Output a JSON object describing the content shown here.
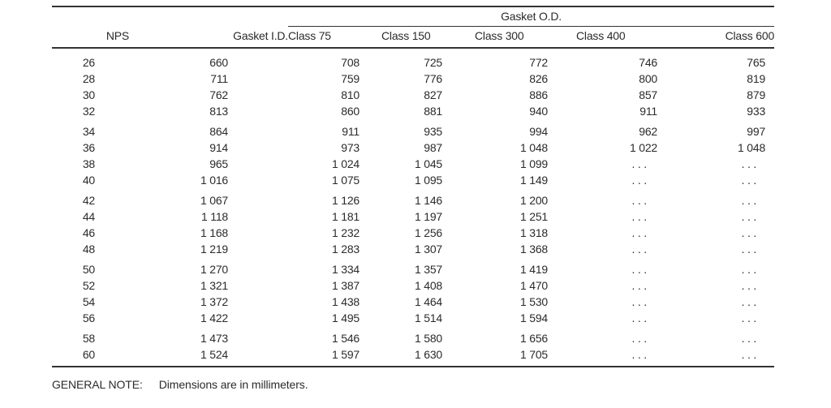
{
  "page": {
    "background": "#ffffff",
    "text_color": "#2b2b2b",
    "rule_color": "#333333"
  },
  "table": {
    "spanner_label": "Gasket O.D.",
    "columns": [
      "NPS",
      "Gasket I.D.",
      "Class 75",
      "Class 150",
      "Class 300",
      "Class 400",
      "Class 600"
    ],
    "ellipsis": ". . .",
    "groups": [
      [
        [
          "26",
          "660",
          "708",
          "725",
          "772",
          "746",
          "765"
        ],
        [
          "28",
          "711",
          "759",
          "776",
          "826",
          "800",
          "819"
        ],
        [
          "30",
          "762",
          "810",
          "827",
          "886",
          "857",
          "879"
        ],
        [
          "32",
          "813",
          "860",
          "881",
          "940",
          "911",
          "933"
        ]
      ],
      [
        [
          "34",
          "864",
          "911",
          "935",
          "994",
          "962",
          "997"
        ],
        [
          "36",
          "914",
          "973",
          "987",
          "1 048",
          "1 022",
          "1 048"
        ],
        [
          "38",
          "965",
          "1 024",
          "1 045",
          "1 099",
          ". . .",
          ". . ."
        ],
        [
          "40",
          "1 016",
          "1 075",
          "1 095",
          "1 149",
          ". . .",
          ". . ."
        ]
      ],
      [
        [
          "42",
          "1 067",
          "1 126",
          "1 146",
          "1 200",
          ". . .",
          ". . ."
        ],
        [
          "44",
          "1 118",
          "1 181",
          "1 197",
          "1 251",
          ". . .",
          ". . ."
        ],
        [
          "46",
          "1 168",
          "1 232",
          "1 256",
          "1 318",
          ". . .",
          ". . ."
        ],
        [
          "48",
          "1 219",
          "1 283",
          "1 307",
          "1 368",
          ". . .",
          ". . ."
        ]
      ],
      [
        [
          "50",
          "1 270",
          "1 334",
          "1 357",
          "1 419",
          ". . .",
          ". . ."
        ],
        [
          "52",
          "1 321",
          "1 387",
          "1 408",
          "1 470",
          ". . .",
          ". . ."
        ],
        [
          "54",
          "1 372",
          "1 438",
          "1 464",
          "1 530",
          ". . .",
          ". . ."
        ],
        [
          "56",
          "1 422",
          "1 495",
          "1 514",
          "1 594",
          ". . .",
          ". . ."
        ]
      ],
      [
        [
          "58",
          "1 473",
          "1 546",
          "1 580",
          "1 656",
          ". . .",
          ". . ."
        ],
        [
          "60",
          "1 524",
          "1 597",
          "1 630",
          "1 705",
          ". . .",
          ". . ."
        ]
      ]
    ]
  },
  "note": {
    "label": "GENERAL NOTE:",
    "text": "Dimensions are in millimeters."
  }
}
